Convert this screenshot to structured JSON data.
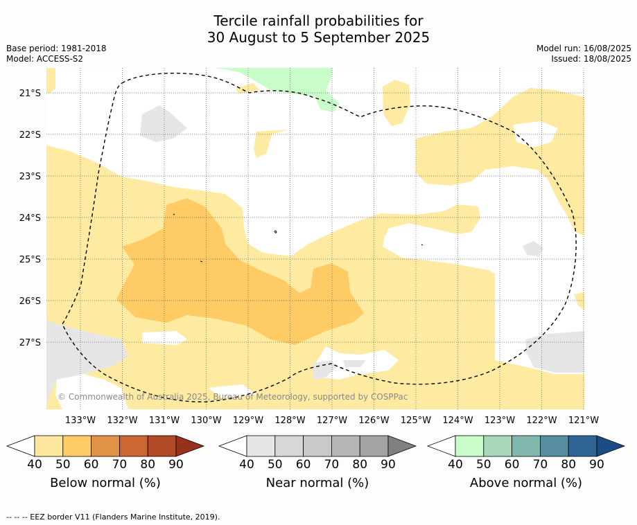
{
  "title_line1": "Tercile rainfall probabilities for",
  "title_line2": "30 August to 5 September 2025",
  "base_period": "Base period: 1981-2018",
  "model": "Model: ACCESS-S2",
  "model_run": "Model run: 16/08/2025",
  "issued": "Issued: 18/08/2025",
  "copyright": "© Commonwealth of Australia 2025, Bureau of Meteorology, supported by COSPPac",
  "footnote": "--  --  -- EEZ border V11 (Flanders Marine Institute, 2019).",
  "lat_labels": [
    "21°S",
    "22°S",
    "23°S",
    "24°S",
    "25°S",
    "26°S",
    "27°S"
  ],
  "lon_labels": [
    "133°W",
    "132°W",
    "131°W",
    "130°W",
    "129°W",
    "128°W",
    "127°W",
    "126°W",
    "125°W",
    "124°W",
    "123°W",
    "122°W",
    "121°W"
  ],
  "colorbars": [
    {
      "title": "Below normal (%)",
      "ticks": [
        "40",
        "50",
        "60",
        "70",
        "80",
        "90"
      ],
      "colors": [
        "#fee8a0",
        "#fecb65",
        "#e09346",
        "#cc6633",
        "#b04a26",
        "#96311c"
      ]
    },
    {
      "title": "Near normal (%)",
      "ticks": [
        "40",
        "50",
        "60",
        "70",
        "80",
        "90"
      ],
      "colors": [
        "#e6e6e6",
        "#d7d7d7",
        "#c9c9c9",
        "#b6b6b6",
        "#a3a3a3",
        "#808080"
      ]
    },
    {
      "title": "Above normal (%)",
      "ticks": [
        "40",
        "50",
        "60",
        "70",
        "80",
        "90"
      ],
      "colors": [
        "#c8fcc8",
        "#a8d8bc",
        "#82b7b0",
        "#578e9f",
        "#2f6494",
        "#1d4c85"
      ]
    }
  ],
  "colors": {
    "below_40": "#feeaa0",
    "below_50": "#fecb65",
    "near_40": "#e6e6e6",
    "above_40": "#c8fcc8",
    "grid": "#555555",
    "copyright_text": "#8a8a8a"
  }
}
